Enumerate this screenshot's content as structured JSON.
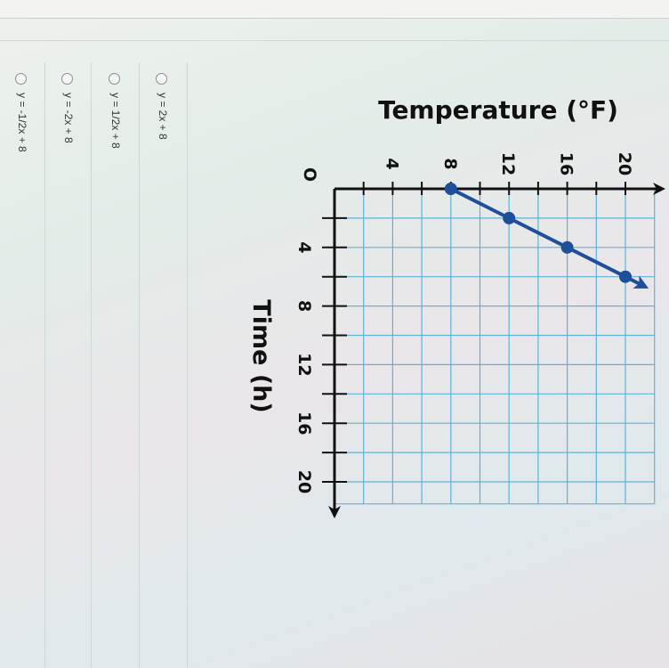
{
  "question": {
    "options": [
      {
        "label": "y = 2x + 8"
      },
      {
        "label": "y = 1/2x + 8"
      },
      {
        "label": "y = -2x + 8"
      },
      {
        "label": "y = -1/2x + 8"
      }
    ]
  },
  "chart_data": {
    "type": "line",
    "title": "",
    "xlabel": "Time (h)",
    "ylabel": "Temperature (°F)",
    "origin_label": "O",
    "xlim": [
      0,
      21
    ],
    "ylim": [
      0,
      22
    ],
    "x_ticks": [
      4,
      8,
      12,
      16,
      20
    ],
    "y_ticks": [
      4,
      8,
      12,
      16,
      20
    ],
    "grid": true,
    "grid_step": 2,
    "orientation": "rotated 90 degrees clockwise",
    "series": [
      {
        "points": [
          [
            0,
            8
          ],
          [
            2,
            12
          ],
          [
            4,
            16
          ],
          [
            6,
            20
          ]
        ],
        "arrow": true
      }
    ],
    "colors": {
      "line": "#1f4f9a",
      "grid": "#5fb3d6",
      "axis": "#111111"
    }
  }
}
